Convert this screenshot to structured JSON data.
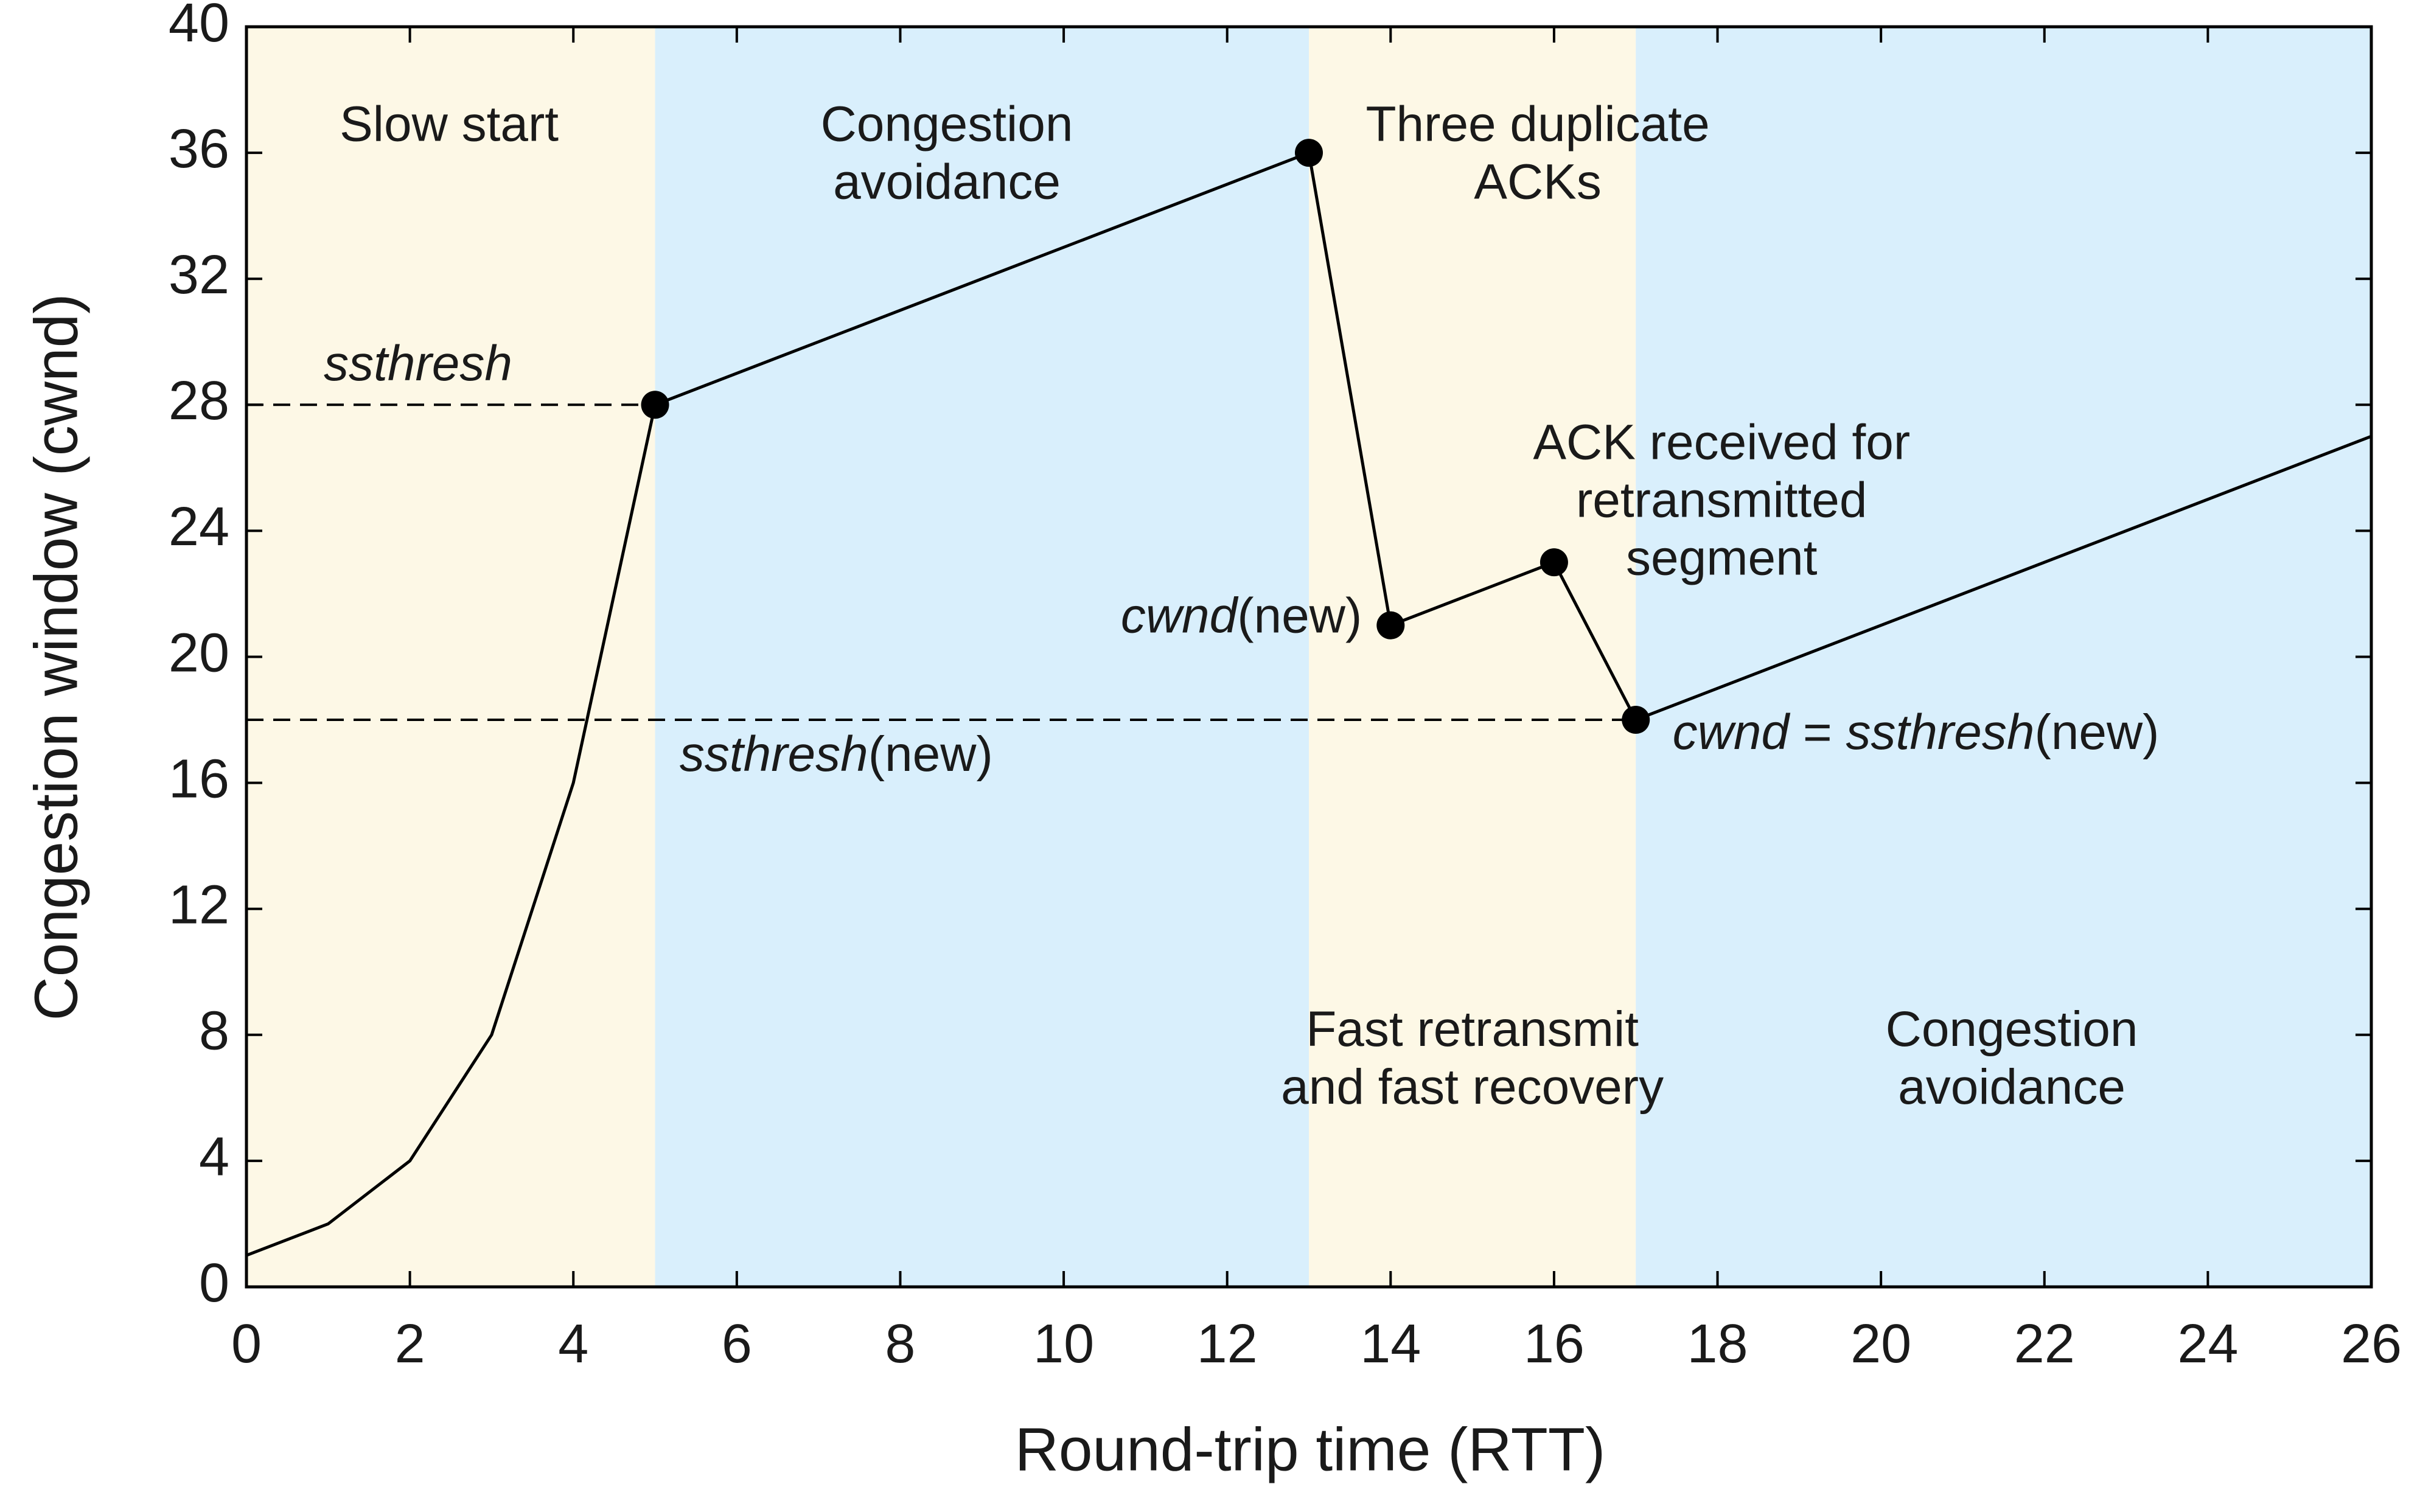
{
  "chart_data": {
    "type": "line",
    "x_label": "Round-trip time (RTT)",
    "y_label": "Congestion window (cwnd)",
    "x": [
      0,
      1,
      2,
      3,
      4,
      5,
      13,
      14,
      16,
      17,
      26
    ],
    "values": [
      1,
      2,
      4,
      8,
      16,
      28,
      36,
      21,
      23,
      18,
      27
    ],
    "markers": [
      false,
      false,
      false,
      false,
      false,
      true,
      true,
      true,
      true,
      true,
      false
    ],
    "color": "#000000",
    "xlim": [
      0,
      26
    ],
    "ylim": [
      0,
      40
    ],
    "xticks": [
      0,
      2,
      4,
      6,
      8,
      10,
      12,
      14,
      16,
      18,
      20,
      22,
      24,
      26
    ],
    "yticks": [
      0,
      4,
      8,
      12,
      16,
      20,
      24,
      28,
      32,
      36,
      40
    ],
    "spans": [
      {
        "x": [
          0,
          5
        ],
        "color": "#fdf8e6"
      },
      {
        "x": [
          5,
          13
        ],
        "color": "#d9effc"
      },
      {
        "x": [
          13,
          17
        ],
        "color": "#fdf8e6"
      },
      {
        "x": [
          17,
          26
        ],
        "color": "#d9effc"
      }
    ],
    "reference_lines": [
      {
        "y": 28,
        "x": [
          0,
          5
        ]
      },
      {
        "y": 18,
        "x": [
          0,
          17
        ]
      }
    ],
    "annotations": [
      {
        "lines": [
          [
            "Slow start"
          ]
        ]
      },
      {
        "lines": [
          [
            "Congestion"
          ],
          [
            "avoidance"
          ]
        ]
      },
      {
        "lines": [
          [
            "Three duplicate"
          ],
          [
            "ACKs"
          ]
        ]
      },
      {
        "lines": [
          [
            {
              "text": "ssthresh",
              "italic": true
            }
          ]
        ]
      },
      {
        "lines": [
          [
            "ACK received for"
          ],
          [
            "retransmitted"
          ],
          [
            "segment"
          ]
        ]
      },
      {
        "lines": [
          [
            {
              "text": "cwnd",
              "italic": true
            },
            "(new)"
          ]
        ]
      },
      {
        "lines": [
          [
            {
              "text": "ssthresh",
              "italic": true
            },
            "(new)"
          ]
        ]
      },
      {
        "lines": [
          [
            {
              "text": "cwnd",
              "italic": true
            },
            " = ",
            {
              "text": "ssthresh",
              "italic": true
            },
            "(new)"
          ]
        ]
      },
      {
        "lines": [
          [
            "Fast retransmit"
          ],
          [
            "and fast recovery"
          ]
        ]
      },
      {
        "lines": [
          [
            "Congestion"
          ],
          [
            "avoidance"
          ]
        ]
      }
    ]
  }
}
